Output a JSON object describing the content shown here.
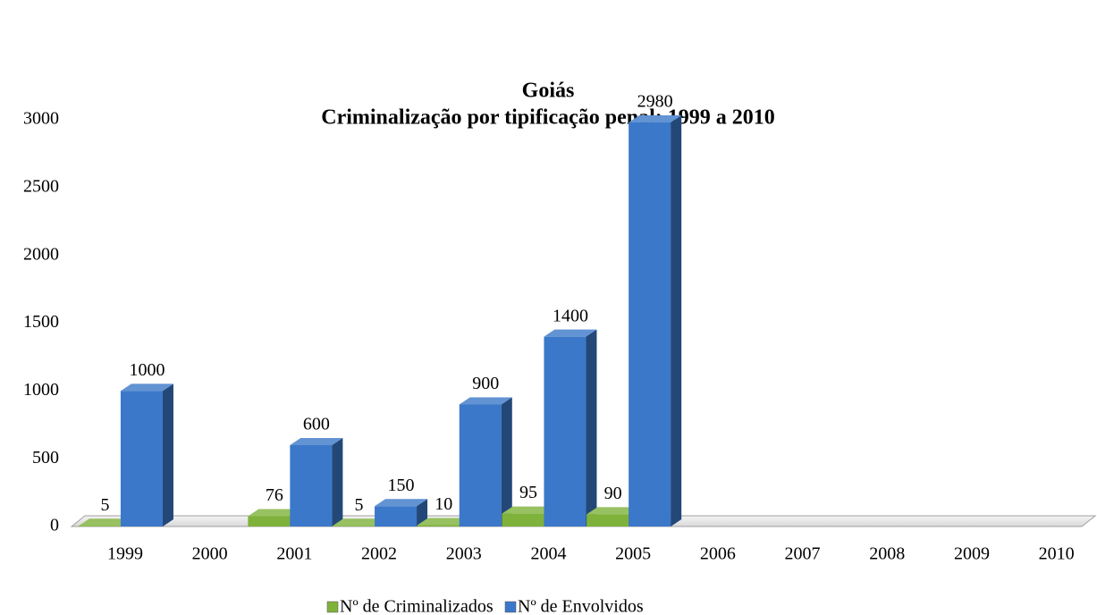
{
  "chart_data": {
    "type": "bar3d",
    "title": "Goiás",
    "subtitle": "Criminalização por tipificação penal: 1999 a 2010",
    "categories": [
      "1999",
      "2000",
      "2001",
      "2002",
      "2003",
      "2004",
      "2005",
      "2006",
      "2007",
      "2008",
      "2009",
      "2010"
    ],
    "series": [
      {
        "name": "Nº de Criminalizados",
        "color": "#7fb23a",
        "values": [
          5,
          null,
          76,
          5,
          10,
          95,
          90,
          null,
          null,
          null,
          null,
          null
        ]
      },
      {
        "name": "Nº de Envolvidos",
        "color": "#3b78c9",
        "values": [
          1000,
          null,
          600,
          150,
          900,
          1400,
          2980,
          null,
          null,
          null,
          null,
          null
        ]
      }
    ],
    "ylim": [
      0,
      3000
    ],
    "yticks": [
      0,
      500,
      1000,
      1500,
      2000,
      2500,
      3000
    ],
    "grid": false,
    "legend": "bottom"
  }
}
